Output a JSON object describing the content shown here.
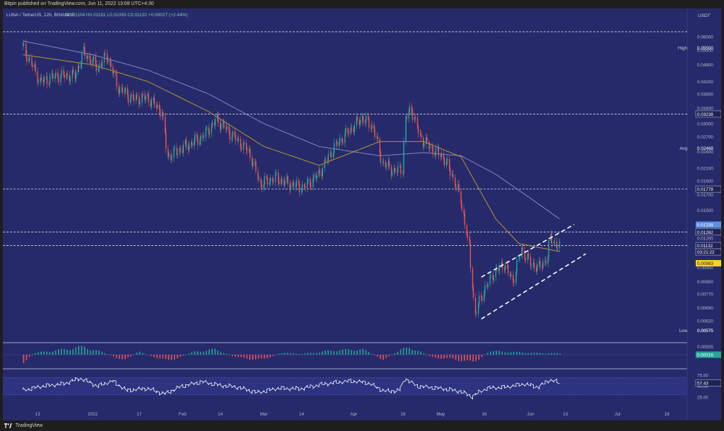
{
  "header": {
    "published": "Bitpin published on TradingView.com, Jun 11, 2022 13:08 UTC+4:30"
  },
  "legend": {
    "symbol": "LUNA / TetherUS, 12h, BINANCE",
    "ohlc": "O0.01104 H0.01181 L0.01093 C0.01132 +0.00027 (+2.44%)"
  },
  "footer": {
    "brand": "TradingView"
  },
  "colors": {
    "background": "#262a6a",
    "up": "#26a69a",
    "down": "#ef5350",
    "ma_fast": "#c9a227",
    "ma_slow": "#8d8fc9",
    "channel": "#ffffff",
    "rsi": "#ffffff"
  },
  "chart_data": [
    {
      "type": "candlestick",
      "role": "price",
      "y_axis_label": "USDT",
      "y_scale": "log",
      "ylim": [
        0.0053,
        0.068
      ],
      "y_ticks": [
        "0.06000",
        "0.05400",
        "0.04800",
        "0.04200",
        "0.03800",
        "0.03400",
        "0.03000",
        "0.02700",
        "0.02400",
        "0.02100",
        "0.01900",
        "0.01700",
        "0.01500",
        "0.01350",
        "0.01200",
        "0.01080",
        "0.00950",
        "0.00850",
        "0.00770",
        "0.00690",
        "0.00620",
        "0.00575",
        "0.00505"
      ],
      "x_ticks": [
        "13",
        "2022",
        "17",
        "Feb",
        "14",
        "Mar",
        "14",
        "Apr",
        "18",
        "May",
        "16",
        "Jun",
        "13",
        "Jul",
        "18"
      ],
      "labels": [
        {
          "text": "High",
          "value": "0.05500",
          "kind": "plain"
        },
        {
          "text": "",
          "value": "0.03238",
          "kind": "box"
        },
        {
          "text": "Avg",
          "value": "0.02468",
          "kind": "plain"
        },
        {
          "text": "",
          "value": "0.01778",
          "kind": "box"
        },
        {
          "text": "",
          "value": "0.01338",
          "kind": "blue"
        },
        {
          "text": "",
          "value": "0.01262",
          "kind": "box"
        },
        {
          "text": "",
          "value": "0.01132",
          "kind": "box"
        },
        {
          "text": "",
          "value": "03:21:22",
          "kind": "box"
        },
        {
          "text": "",
          "value": "0.00983",
          "kind": "yellow"
        },
        {
          "text": "Low",
          "value": "0.00575",
          "kind": "plain"
        }
      ],
      "horizontal_levels": [
        0.0625,
        0.03238,
        0.01778,
        0.01262,
        0.01132
      ],
      "channel_lines": [
        {
          "from": [
            "2022-05-15",
            0.0088
          ],
          "to": [
            "2022-06-16",
            0.0134
          ]
        },
        {
          "from": [
            "2022-05-15",
            0.0063
          ],
          "to": [
            "2022-06-20",
            0.0106
          ]
        }
      ],
      "close_series": [
        [
          "2021-12-08",
          0.0557
        ],
        [
          "2021-12-14",
          0.042
        ],
        [
          "2021-12-20",
          0.044
        ],
        [
          "2021-12-26",
          0.044
        ],
        [
          "2021-12-29",
          0.053
        ],
        [
          "2022-01-03",
          0.047
        ],
        [
          "2022-01-06",
          0.052
        ],
        [
          "2022-01-10",
          0.04
        ],
        [
          "2022-01-15",
          0.0365
        ],
        [
          "2022-01-20",
          0.037
        ],
        [
          "2022-01-25",
          0.033
        ],
        [
          "2022-01-27",
          0.023
        ],
        [
          "2022-02-02",
          0.025
        ],
        [
          "2022-02-08",
          0.027
        ],
        [
          "2022-02-13",
          0.031
        ],
        [
          "2022-02-18",
          0.0275
        ],
        [
          "2022-02-24",
          0.024
        ],
        [
          "2022-02-28",
          0.0185
        ],
        [
          "2022-03-05",
          0.0195
        ],
        [
          "2022-03-10",
          0.0185
        ],
        [
          "2022-03-15",
          0.018
        ],
        [
          "2022-03-20",
          0.02
        ],
        [
          "2022-03-25",
          0.0245
        ],
        [
          "2022-03-30",
          0.028
        ],
        [
          "2022-04-04",
          0.0315
        ],
        [
          "2022-04-08",
          0.029
        ],
        [
          "2022-04-11",
          0.022
        ],
        [
          "2022-04-15",
          0.0205
        ],
        [
          "2022-04-18",
          0.021
        ],
        [
          "2022-04-19",
          0.031
        ],
        [
          "2022-04-21",
          0.034
        ],
        [
          "2022-04-24",
          0.027
        ],
        [
          "2022-04-28",
          0.0245
        ],
        [
          "2022-05-02",
          0.023
        ],
        [
          "2022-05-05",
          0.02
        ],
        [
          "2022-05-08",
          0.0165
        ],
        [
          "2022-05-11",
          0.011
        ],
        [
          "2022-05-13",
          0.0065
        ],
        [
          "2022-05-15",
          0.0075
        ],
        [
          "2022-05-19",
          0.009
        ],
        [
          "2022-05-23",
          0.0098
        ],
        [
          "2022-05-26",
          0.0085
        ],
        [
          "2022-05-29",
          0.011
        ],
        [
          "2022-06-01",
          0.0098
        ],
        [
          "2022-06-04",
          0.0095
        ],
        [
          "2022-06-07",
          0.0103
        ],
        [
          "2022-06-08",
          0.0122
        ],
        [
          "2022-06-10",
          0.0113
        ],
        [
          "2022-06-11",
          0.0113
        ]
      ],
      "ma_fast_series": [
        [
          "2021-12-08",
          0.052
        ],
        [
          "2022-01-01",
          0.048
        ],
        [
          "2022-01-20",
          0.042
        ],
        [
          "2022-02-10",
          0.033
        ],
        [
          "2022-03-01",
          0.025
        ],
        [
          "2022-03-20",
          0.0215
        ],
        [
          "2022-04-10",
          0.026
        ],
        [
          "2022-04-25",
          0.026
        ],
        [
          "2022-05-08",
          0.023
        ],
        [
          "2022-05-20",
          0.014
        ],
        [
          "2022-05-28",
          0.0115
        ],
        [
          "2022-06-11",
          0.0108
        ]
      ],
      "ma_slow_series": [
        [
          "2021-12-08",
          0.058
        ],
        [
          "2022-01-01",
          0.052
        ],
        [
          "2022-01-20",
          0.046
        ],
        [
          "2022-02-10",
          0.038
        ],
        [
          "2022-03-01",
          0.03
        ],
        [
          "2022-03-20",
          0.025
        ],
        [
          "2022-04-10",
          0.0232
        ],
        [
          "2022-04-25",
          0.0238
        ],
        [
          "2022-05-08",
          0.0232
        ],
        [
          "2022-05-20",
          0.02
        ],
        [
          "2022-06-01",
          0.0165
        ],
        [
          "2022-06-11",
          0.014
        ]
      ]
    },
    {
      "type": "histogram",
      "role": "oscillator",
      "last_value": "0.00016",
      "ylim": [
        -1,
        1
      ],
      "series": [
        [
          "2021-12-08",
          -0.8
        ],
        [
          "2021-12-12",
          0.2
        ],
        [
          "2021-12-20",
          0.5
        ],
        [
          "2021-12-29",
          0.9
        ],
        [
          "2022-01-05",
          0.2
        ],
        [
          "2022-01-12",
          -0.6
        ],
        [
          "2022-01-17",
          0.3
        ],
        [
          "2022-01-27",
          -0.7
        ],
        [
          "2022-02-05",
          0.3
        ],
        [
          "2022-02-12",
          0.6
        ],
        [
          "2022-02-20",
          -0.3
        ],
        [
          "2022-02-28",
          -0.6
        ],
        [
          "2022-03-07",
          0.2
        ],
        [
          "2022-03-15",
          0.1
        ],
        [
          "2022-03-25",
          0.5
        ],
        [
          "2022-04-04",
          0.6
        ],
        [
          "2022-04-11",
          -0.5
        ],
        [
          "2022-04-20",
          0.9
        ],
        [
          "2022-04-28",
          -0.3
        ],
        [
          "2022-05-06",
          -0.5
        ],
        [
          "2022-05-12",
          -0.9
        ],
        [
          "2022-05-18",
          0.4
        ],
        [
          "2022-05-26",
          0.3
        ],
        [
          "2022-06-02",
          0.2
        ],
        [
          "2022-06-11",
          0.15
        ]
      ]
    },
    {
      "type": "line",
      "role": "rsi",
      "y_ticks": [
        "75.00",
        "50.00",
        "25.00"
      ],
      "last_value": "57.43",
      "ylim": [
        15,
        85
      ],
      "band": [
        30,
        70
      ],
      "series": [
        [
          "2021-12-08",
          40
        ],
        [
          "2021-12-15",
          50
        ],
        [
          "2021-12-22",
          55
        ],
        [
          "2021-12-28",
          68
        ],
        [
          "2022-01-03",
          50
        ],
        [
          "2022-01-08",
          62
        ],
        [
          "2022-01-13",
          40
        ],
        [
          "2022-01-20",
          45
        ],
        [
          "2022-01-26",
          32
        ],
        [
          "2022-02-01",
          50
        ],
        [
          "2022-02-08",
          60
        ],
        [
          "2022-02-14",
          52
        ],
        [
          "2022-02-20",
          48
        ],
        [
          "2022-02-27",
          35
        ],
        [
          "2022-03-06",
          45
        ],
        [
          "2022-03-14",
          44
        ],
        [
          "2022-03-22",
          55
        ],
        [
          "2022-03-31",
          62
        ],
        [
          "2022-04-06",
          58
        ],
        [
          "2022-04-12",
          38
        ],
        [
          "2022-04-17",
          40
        ],
        [
          "2022-04-19",
          68
        ],
        [
          "2022-04-23",
          50
        ],
        [
          "2022-05-01",
          45
        ],
        [
          "2022-05-08",
          38
        ],
        [
          "2022-05-12",
          26
        ],
        [
          "2022-05-17",
          45
        ],
        [
          "2022-05-24",
          48
        ],
        [
          "2022-05-30",
          55
        ],
        [
          "2022-06-04",
          48
        ],
        [
          "2022-06-08",
          65
        ],
        [
          "2022-06-11",
          57.43
        ]
      ]
    }
  ]
}
